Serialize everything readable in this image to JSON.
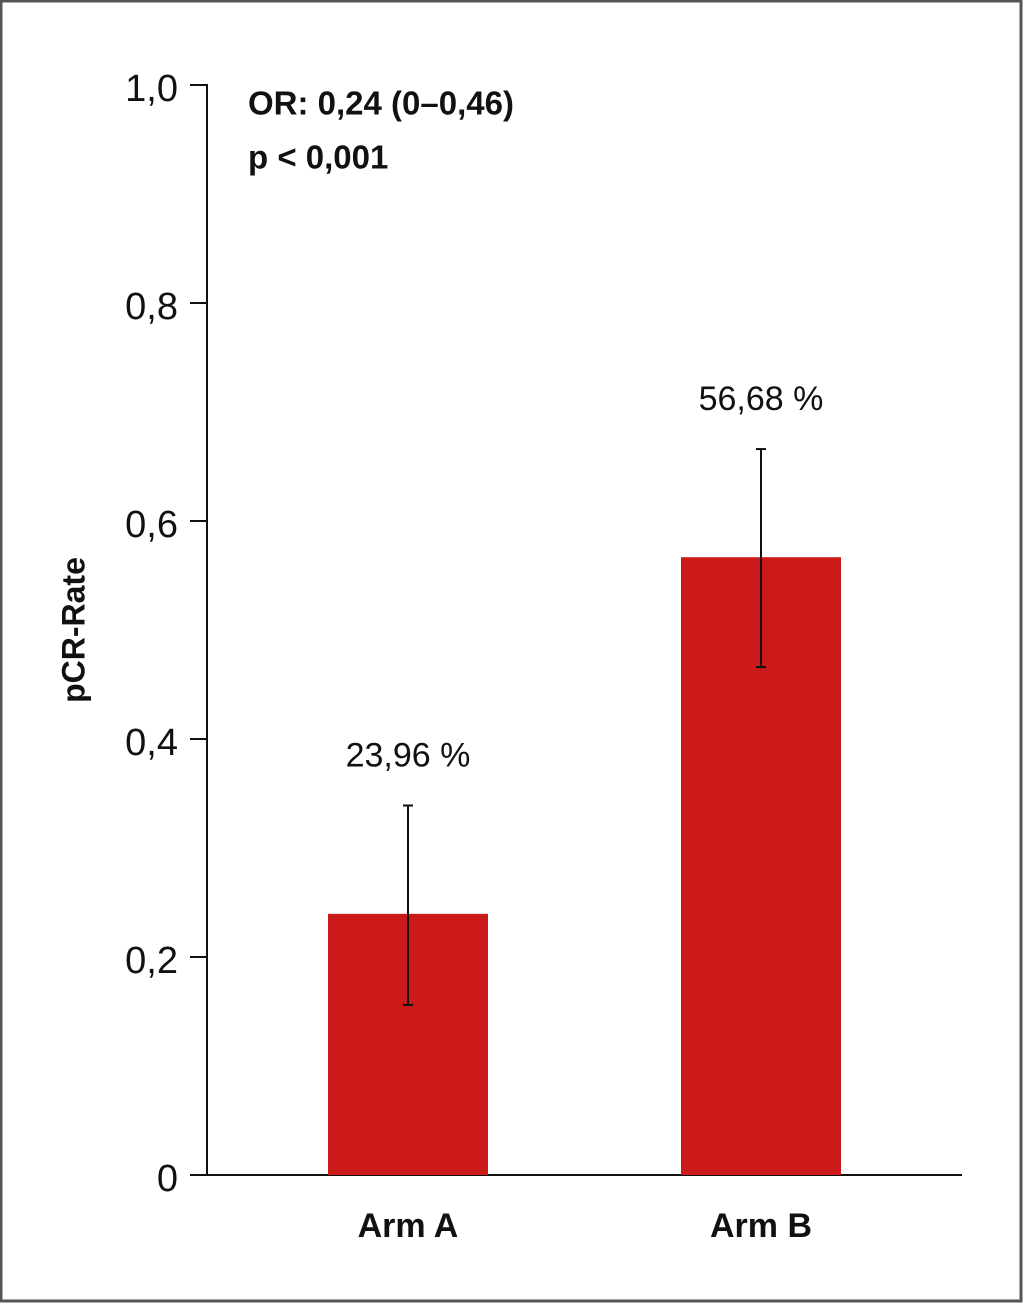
{
  "chart_data": {
    "type": "bar",
    "y_label": "pCR-Rate",
    "annotations": [
      "OR: 0,24 (0–0,46)",
      "p < 0,001"
    ],
    "categories": [
      "Arm A",
      "Arm B"
    ],
    "values": [
      0.2396,
      0.5668
    ],
    "value_labels": [
      "23,96 %",
      "56,68 %"
    ],
    "error_lower": [
      0.156,
      0.466
    ],
    "error_upper": [
      0.339,
      0.666
    ],
    "color": "#cc1a1a",
    "ylim": [
      0,
      1
    ],
    "yticks": [
      0,
      {
        "value": 0.2,
        "label": "0,2"
      },
      {
        "value": 0.4,
        "label": "0,4"
      },
      {
        "value": 0.6,
        "label": "0,6"
      },
      {
        "value": 0.8,
        "label": "0,8"
      },
      {
        "value": 1,
        "label": "1,0"
      }
    ]
  }
}
